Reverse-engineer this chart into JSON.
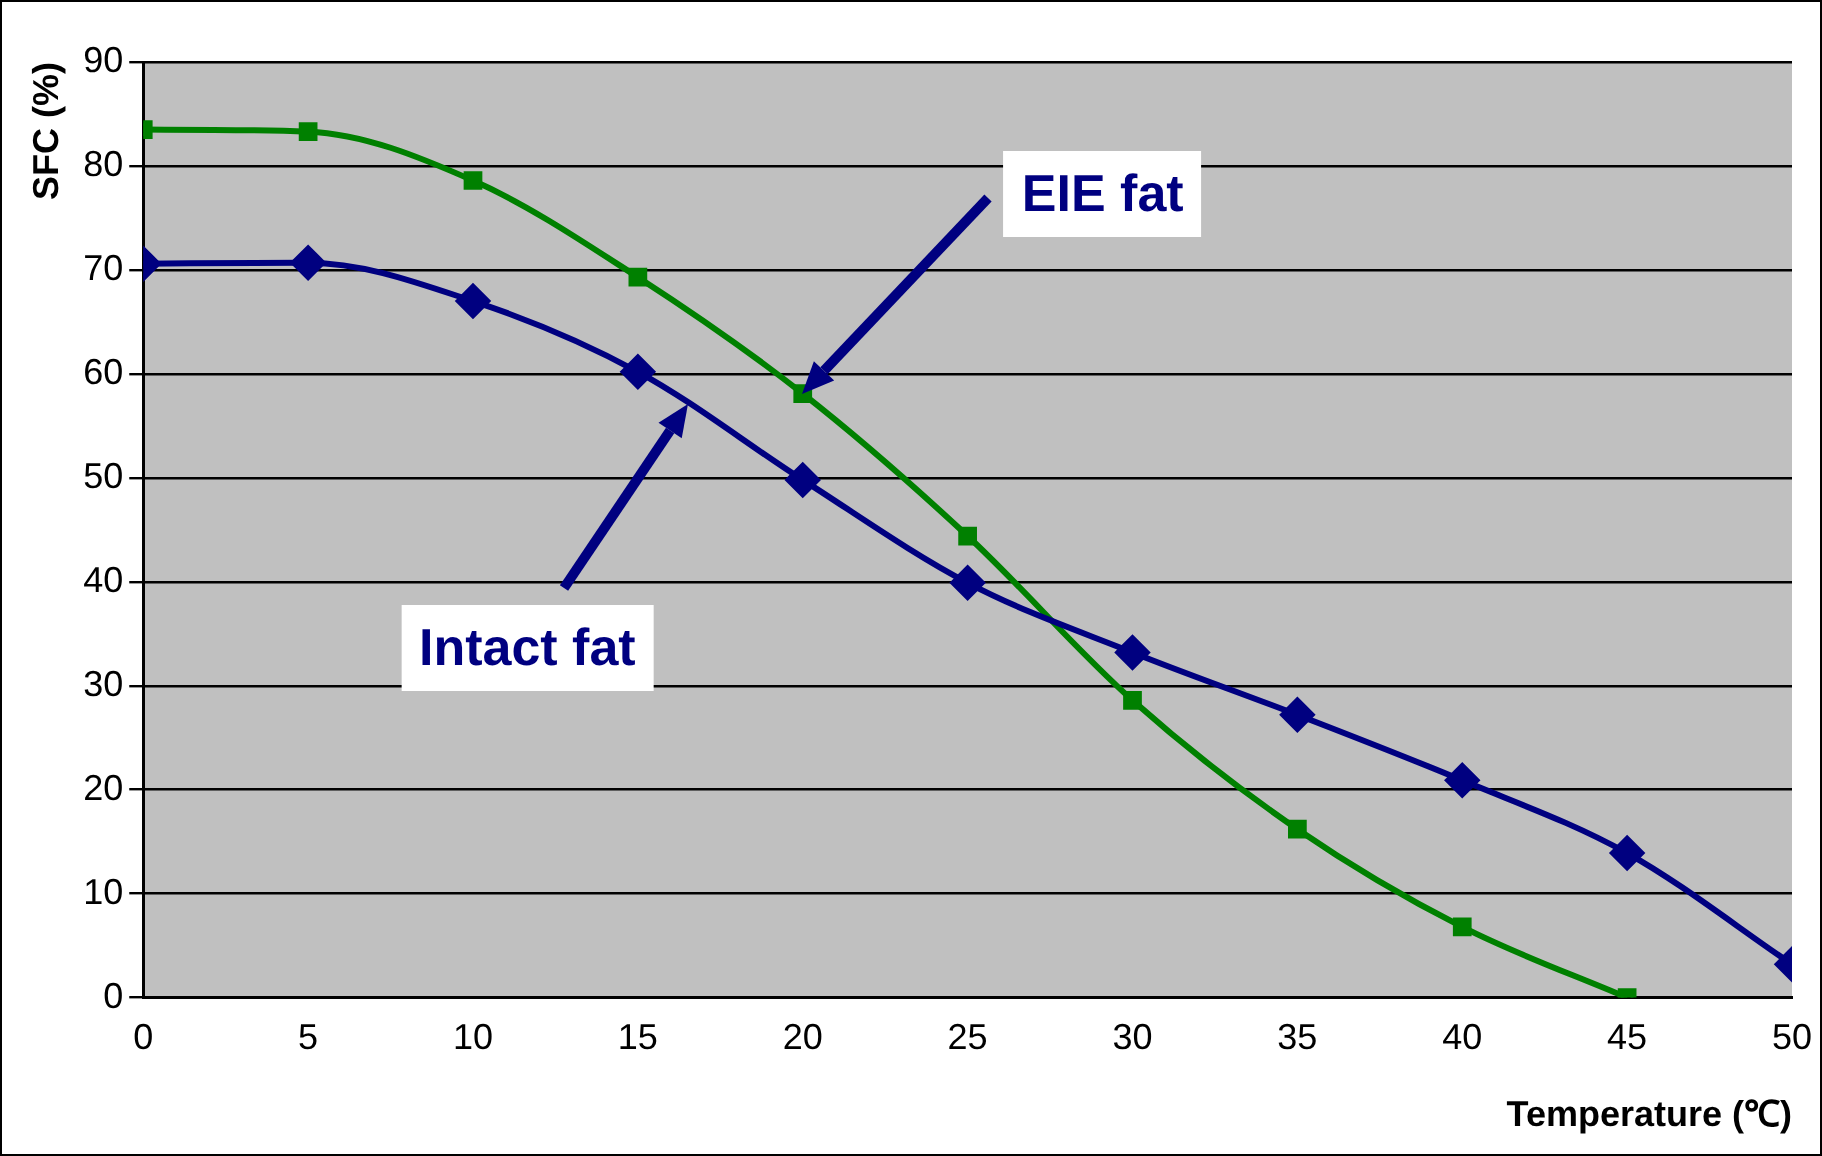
{
  "chart_data": {
    "type": "line",
    "xlabel": "Temperature (℃)",
    "ylabel": "SFC (%)",
    "x": [
      0,
      5,
      10,
      15,
      20,
      25,
      30,
      35,
      40,
      45,
      50
    ],
    "series": [
      {
        "color": "#000080",
        "marker": "diamond",
        "values": [
          70.6,
          70.7,
          67.0,
          60.2,
          49.8,
          39.9,
          33.2,
          27.2,
          20.9,
          13.9,
          3.2
        ]
      },
      {
        "color": "#008000",
        "marker": "square",
        "values": [
          83.5,
          83.3,
          78.6,
          69.3,
          58.1,
          44.4,
          28.6,
          16.2,
          6.8,
          0,
          null
        ]
      }
    ],
    "xlim": [
      0,
      50
    ],
    "xticks": [
      0,
      5,
      10,
      15,
      20,
      25,
      30,
      35,
      40,
      45,
      50
    ],
    "ylim": [
      0,
      90
    ],
    "yticks": [
      0,
      10,
      20,
      30,
      40,
      50,
      60,
      70,
      80,
      90
    ],
    "grid": "y",
    "annotations": [
      "Intact fat",
      "EIE fat"
    ]
  }
}
